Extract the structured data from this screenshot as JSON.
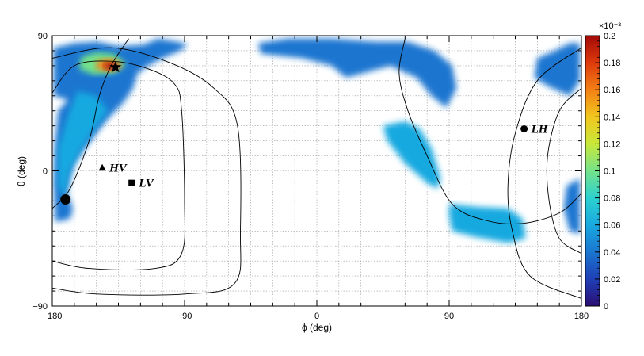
{
  "chart_data": {
    "type": "heatmap",
    "projection": "equirectangular sky map",
    "xlabel": "ϕ (deg)",
    "ylabel": "θ (deg)",
    "xlim": [
      -180,
      180
    ],
    "ylim": [
      -90,
      90
    ],
    "x_ticks": [
      -180,
      -90,
      0,
      90,
      180
    ],
    "y_ticks": [
      -90,
      0,
      90
    ],
    "grid": true,
    "colorbar": {
      "range": [
        0,
        0.0002
      ],
      "exponent_label": "×10⁻³",
      "tick_labels": [
        "0",
        "0.02",
        "0.04",
        "0.06",
        "0.08",
        "0.1",
        "0.12",
        "0.14",
        "0.16",
        "0.18",
        "0.2"
      ],
      "palette": [
        "#2a0e73",
        "#1f3fb6",
        "#1a76d0",
        "#19a9e0",
        "#2dd1cf",
        "#74e28a",
        "#c8e83a",
        "#f2c61e",
        "#f38014",
        "#de3a0c",
        "#a30a08"
      ]
    },
    "regions": [
      {
        "name": "northwest lobe",
        "points": [
          [
            -179,
            82
          ],
          [
            -165,
            85
          ],
          [
            -150,
            86
          ],
          [
            -135,
            83
          ],
          [
            -118,
            84
          ],
          [
            -108,
            88
          ],
          [
            -95,
            86
          ],
          [
            -88,
            84
          ],
          [
            -93,
            80
          ],
          [
            -105,
            75
          ],
          [
            -115,
            70
          ],
          [
            -122,
            65
          ],
          [
            -125,
            55
          ],
          [
            -132,
            45
          ],
          [
            -142,
            35
          ],
          [
            -150,
            25
          ],
          [
            -158,
            15
          ],
          [
            -165,
            5
          ],
          [
            -168,
            -5
          ],
          [
            -170,
            -15
          ],
          [
            -166,
            -25
          ],
          [
            -168,
            -32
          ],
          [
            -178,
            -34
          ],
          [
            -179,
            -10
          ],
          [
            -178,
            20
          ],
          [
            -176,
            40
          ],
          [
            -165,
            52
          ],
          [
            -160,
            50
          ],
          [
            -168,
            47
          ],
          [
            -179,
            50
          ]
        ],
        "level": 3e-05
      },
      {
        "name": "northwest stripe",
        "points": [
          [
            -163,
            53
          ],
          [
            -150,
            50
          ],
          [
            -142,
            40
          ],
          [
            -150,
            30
          ],
          [
            -160,
            15
          ],
          [
            -168,
            0
          ],
          [
            -172,
            -18
          ],
          [
            -168,
            -25
          ],
          [
            -176,
            -10
          ],
          [
            -176,
            15
          ],
          [
            -170,
            35
          ]
        ],
        "level": 5e-05
      },
      {
        "name": "northwest core",
        "points": [
          [
            -160,
            76
          ],
          [
            -150,
            79
          ],
          [
            -138,
            78
          ],
          [
            -130,
            71
          ],
          [
            -138,
            65
          ],
          [
            -152,
            64
          ],
          [
            -162,
            68
          ]
        ],
        "level": 9e-05
      },
      {
        "name": "northwest hot spot",
        "points": [
          [
            -150,
            73
          ],
          [
            -140,
            75
          ],
          [
            -132,
            70
          ],
          [
            -140,
            66
          ],
          [
            -150,
            68
          ]
        ],
        "level": 0.00016
      },
      {
        "name": "northwest peak",
        "points": [
          [
            -144,
            72
          ],
          [
            -138,
            72
          ],
          [
            -135,
            69
          ],
          [
            -141,
            67
          ],
          [
            -145,
            69
          ]
        ],
        "level": 0.00019
      },
      {
        "name": "northern band",
        "points": [
          [
            -40,
            85
          ],
          [
            -20,
            88
          ],
          [
            10,
            88
          ],
          [
            40,
            86
          ],
          [
            62,
            86
          ],
          [
            80,
            80
          ],
          [
            92,
            70
          ],
          [
            95,
            55
          ],
          [
            88,
            42
          ],
          [
            78,
            50
          ],
          [
            68,
            62
          ],
          [
            50,
            70
          ],
          [
            20,
            62
          ],
          [
            10,
            70
          ],
          [
            -10,
            75
          ],
          [
            -38,
            78
          ]
        ],
        "level": 3e-05
      },
      {
        "name": "northeast patch",
        "points": [
          [
            150,
            75
          ],
          [
            162,
            80
          ],
          [
            172,
            85
          ],
          [
            179,
            85
          ],
          [
            179,
            60
          ],
          [
            172,
            50
          ],
          [
            158,
            56
          ],
          [
            148,
            62
          ]
        ],
        "level": 3e-05
      },
      {
        "name": "eastern edge",
        "points": [
          [
            170,
            -10
          ],
          [
            179,
            -5
          ],
          [
            179,
            -42
          ],
          [
            172,
            -40
          ],
          [
            168,
            -25
          ]
        ],
        "level": 4e-05
      },
      {
        "name": "central blob",
        "points": [
          [
            45,
            30
          ],
          [
            60,
            33
          ],
          [
            70,
            28
          ],
          [
            78,
            15
          ],
          [
            84,
            -5
          ],
          [
            82,
            -12
          ],
          [
            75,
            -8
          ],
          [
            60,
            5
          ],
          [
            48,
            20
          ]
        ],
        "level": 5e-05
      },
      {
        "name": "southern blob",
        "points": [
          [
            90,
            -22
          ],
          [
            110,
            -24
          ],
          [
            130,
            -25
          ],
          [
            140,
            -32
          ],
          [
            142,
            -45
          ],
          [
            130,
            -48
          ],
          [
            108,
            -44
          ],
          [
            92,
            -40
          ],
          [
            90,
            -30
          ]
        ],
        "level": 6e-05
      }
    ],
    "contours": [
      {
        "name": "western contour",
        "points": [
          [
            -180,
            52
          ],
          [
            -165,
            70
          ],
          [
            -140,
            73
          ],
          [
            -115,
            68
          ],
          [
            -97,
            58
          ],
          [
            -92,
            40
          ],
          [
            -90,
            -20
          ],
          [
            -92,
            -55
          ],
          [
            -110,
            -65
          ],
          [
            -155,
            -65
          ],
          [
            -180,
            -60
          ]
        ]
      },
      {
        "name": "western outer contour",
        "points": [
          [
            -180,
            75
          ],
          [
            -140,
            82
          ],
          [
            -100,
            72
          ],
          [
            -70,
            55
          ],
          [
            -54,
            30
          ],
          [
            -52,
            -40
          ],
          [
            -56,
            -75
          ],
          [
            -90,
            -82
          ],
          [
            -150,
            -82
          ],
          [
            -180,
            -78
          ]
        ]
      },
      {
        "name": "eastern contour",
        "points": [
          [
            180,
            82
          ],
          [
            150,
            60
          ],
          [
            135,
            25
          ],
          [
            130,
            -10
          ],
          [
            133,
            -40
          ],
          [
            145,
            -70
          ],
          [
            180,
            -85
          ]
        ]
      },
      {
        "name": "eastern arc",
        "points": [
          [
            60,
            88
          ],
          [
            56,
            65
          ],
          [
            62,
            40
          ],
          [
            75,
            10
          ],
          [
            92,
            -22
          ],
          [
            115,
            -33
          ],
          [
            140,
            -35
          ],
          [
            165,
            -28
          ],
          [
            180,
            -15
          ]
        ]
      },
      {
        "name": "southeast contour",
        "points": [
          [
            180,
            55
          ],
          [
            165,
            40
          ],
          [
            157,
            10
          ],
          [
            158,
            -20
          ],
          [
            165,
            -45
          ],
          [
            180,
            -55
          ]
        ]
      },
      {
        "name": "source track",
        "points": [
          [
            -180,
            -25
          ],
          [
            -168,
            -12
          ],
          [
            -155,
            20
          ],
          [
            -148,
            50
          ],
          [
            -140,
            70
          ],
          [
            -128,
            88
          ]
        ]
      }
    ],
    "markers": [
      {
        "label": "",
        "shape": "star",
        "phi": -137,
        "theta": 69
      },
      {
        "label": "",
        "shape": "circle",
        "phi": -171,
        "theta": -19
      },
      {
        "label": "HV",
        "shape": "triangle",
        "phi": -146,
        "theta": 2
      },
      {
        "label": "LV",
        "shape": "square",
        "phi": -126,
        "theta": -8
      },
      {
        "label": "LH",
        "shape": "circle",
        "phi": 141,
        "theta": 28
      }
    ]
  }
}
